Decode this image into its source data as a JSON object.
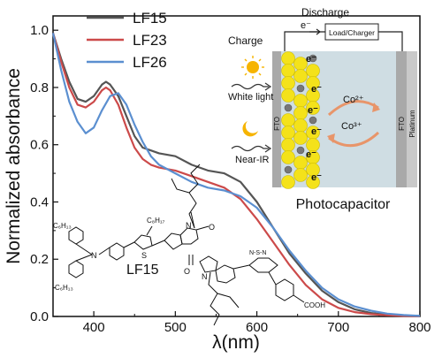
{
  "chart_data": {
    "type": "line",
    "xlabel": "λ(nm)",
    "ylabel": "Normalized absorbance",
    "xlim": [
      350,
      800
    ],
    "ylim": [
      0.0,
      1.05
    ],
    "xticks": [
      400,
      500,
      600,
      700,
      800
    ],
    "yticks": [
      0.0,
      0.2,
      0.4,
      0.6,
      0.8,
      1.0
    ],
    "xtick_labels": [
      "400",
      "500",
      "600",
      "700",
      "800"
    ],
    "ytick_labels": [
      "0.0",
      "0.2",
      "0.4",
      "0.6",
      "0.8",
      "1.0"
    ],
    "legend_position": "top-left",
    "series": [
      {
        "name": "LF15",
        "color": "#555555",
        "x": [
          350,
          360,
          370,
          380,
          390,
          400,
          410,
          415,
          420,
          430,
          440,
          450,
          460,
          470,
          480,
          500,
          520,
          540,
          560,
          580,
          600,
          620,
          640,
          660,
          680,
          700,
          720,
          740,
          760,
          780,
          800
        ],
        "y": [
          0.99,
          0.9,
          0.82,
          0.76,
          0.75,
          0.77,
          0.81,
          0.82,
          0.81,
          0.77,
          0.7,
          0.63,
          0.59,
          0.58,
          0.57,
          0.56,
          0.53,
          0.51,
          0.5,
          0.47,
          0.4,
          0.31,
          0.22,
          0.15,
          0.09,
          0.05,
          0.025,
          0.012,
          0.006,
          0.003,
          0.002
        ]
      },
      {
        "name": "LF23",
        "color": "#cc4a4a",
        "x": [
          350,
          360,
          370,
          380,
          390,
          400,
          410,
          415,
          420,
          430,
          440,
          450,
          460,
          470,
          480,
          500,
          520,
          540,
          560,
          580,
          600,
          620,
          640,
          660,
          680,
          700,
          720,
          740,
          760,
          780,
          800
        ],
        "y": [
          0.99,
          0.89,
          0.8,
          0.74,
          0.73,
          0.75,
          0.79,
          0.8,
          0.79,
          0.74,
          0.66,
          0.59,
          0.55,
          0.53,
          0.52,
          0.51,
          0.49,
          0.47,
          0.45,
          0.41,
          0.34,
          0.26,
          0.18,
          0.11,
          0.06,
          0.03,
          0.015,
          0.008,
          0.004,
          0.002,
          0.001
        ]
      },
      {
        "name": "LF26",
        "color": "#5b8fd0",
        "x": [
          350,
          360,
          370,
          380,
          390,
          400,
          410,
          420,
          430,
          440,
          450,
          460,
          470,
          480,
          500,
          520,
          540,
          560,
          580,
          600,
          620,
          640,
          660,
          680,
          700,
          720,
          740,
          760,
          780,
          800
        ],
        "y": [
          0.99,
          0.86,
          0.75,
          0.68,
          0.64,
          0.66,
          0.72,
          0.77,
          0.78,
          0.74,
          0.67,
          0.61,
          0.56,
          0.53,
          0.5,
          0.47,
          0.45,
          0.44,
          0.42,
          0.38,
          0.31,
          0.23,
          0.16,
          0.1,
          0.06,
          0.035,
          0.02,
          0.01,
          0.005,
          0.002
        ]
      }
    ]
  },
  "inset": {
    "discharge_label": "Discharge",
    "charge_label": "Charge",
    "electron_label": "e⁻",
    "load_label": "Load/Charger",
    "white_light_label": "White light",
    "near_ir_label": "Near-IR",
    "fto_left_label": "FTO",
    "fto_right_label": "FTO",
    "platinum_label": "Platinum",
    "co2_label": "Co²⁺",
    "co3_label": "Co³⁺",
    "photocapacitor_label": "Photocapacitor",
    "sun_icon": "sun-icon",
    "moon_icon": "moon-icon"
  },
  "molecule": {
    "name_label": "LF15",
    "c6h13_top": "C₆H₁₃",
    "c6h13_bottom": "C₆H₁₃",
    "c8h17": "C₈H₁₇",
    "n_label": "N",
    "s_label": "S",
    "o_label": "O",
    "n_ring_label": "N",
    "btz_label": "N-S-N",
    "cooh_label": "COOH"
  }
}
